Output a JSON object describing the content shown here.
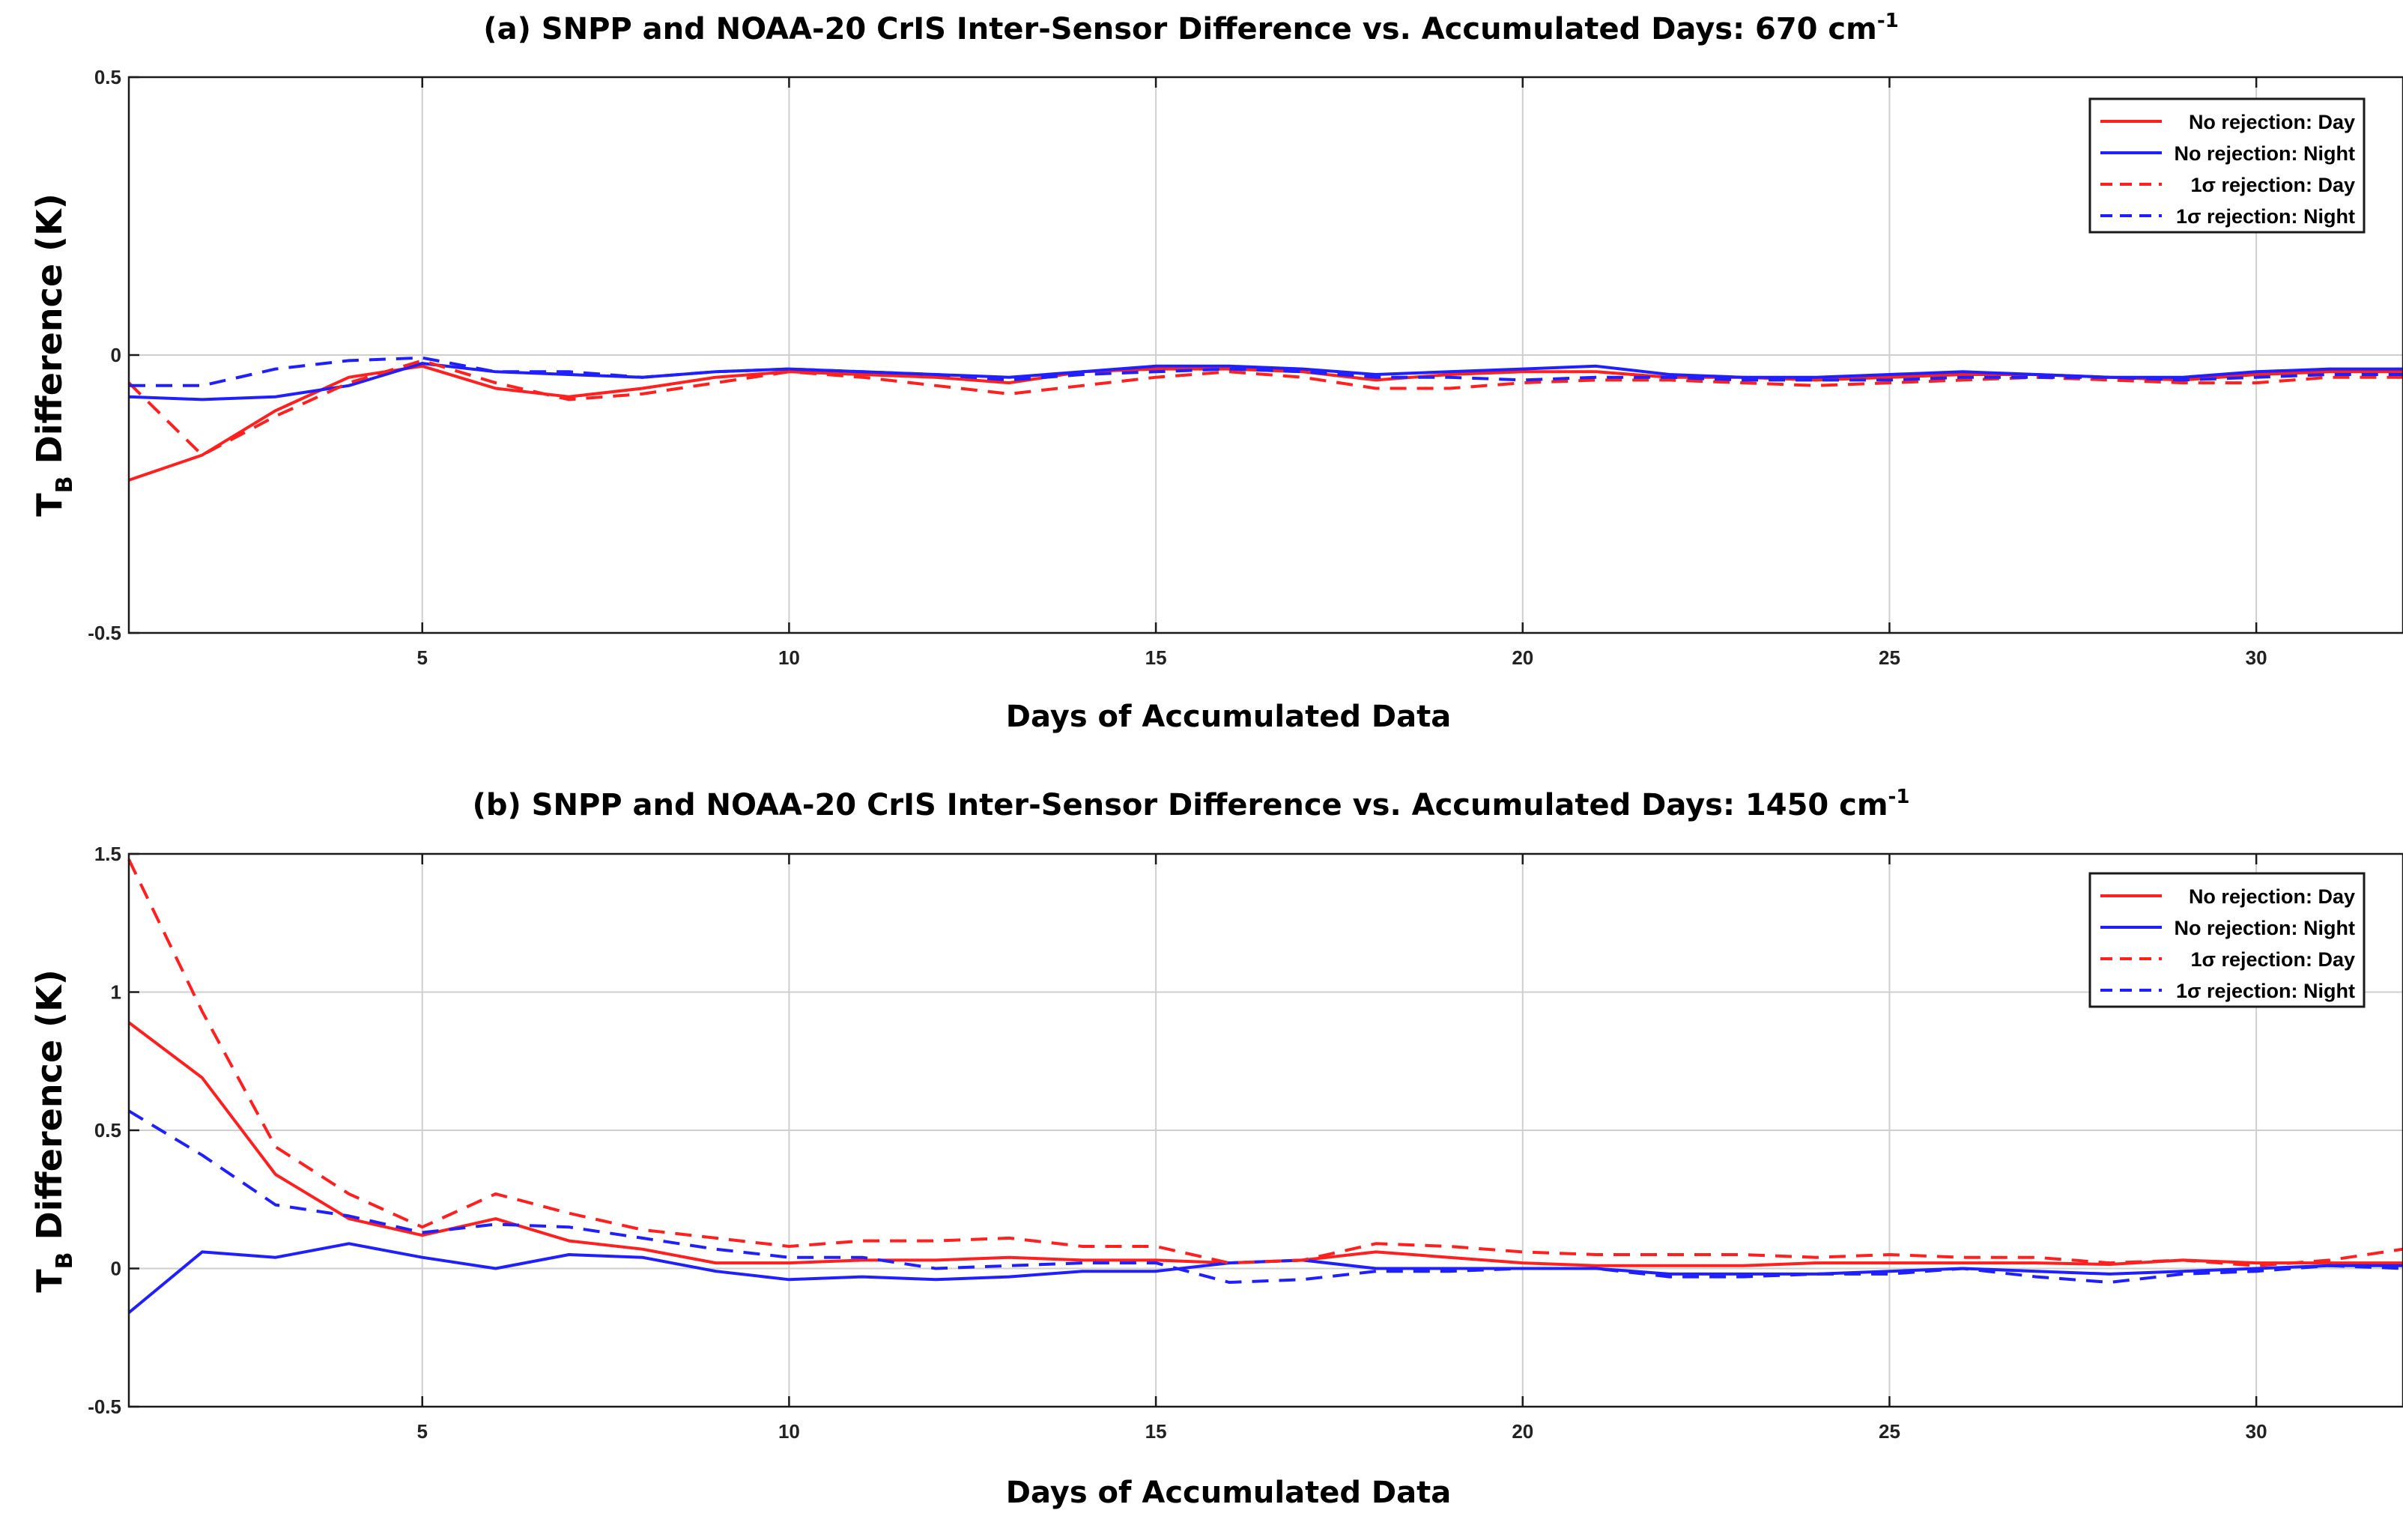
{
  "chart_data": [
    {
      "type": "line",
      "title": "(a) SNPP and NOAA-20 CrIS Inter-Sensor Difference vs. Accumulated Days: 670 cm",
      "title_sup": "-1",
      "xlabel": "Days of Accumulated Data",
      "ylabel_main": "T",
      "ylabel_sub": "B",
      "ylabel_rest": " Difference (K)",
      "xlim": [
        1,
        32
      ],
      "ylim": [
        -0.5,
        0.5
      ],
      "xticks": [
        5,
        10,
        15,
        20,
        25,
        30
      ],
      "xtick_labels": [
        "5",
        "10",
        "15",
        "20",
        "25",
        "30"
      ],
      "yticks": [
        -0.5,
        0,
        0.5
      ],
      "ytick_labels": [
        "-0.5",
        "0",
        "0.5"
      ],
      "grid": true,
      "legend_position": "top-right",
      "x": [
        1,
        2,
        3,
        4,
        5,
        6,
        7,
        8,
        9,
        10,
        11,
        12,
        13,
        14,
        15,
        16,
        17,
        18,
        19,
        20,
        21,
        22,
        23,
        24,
        25,
        26,
        27,
        28,
        29,
        30,
        31,
        32
      ],
      "series": [
        {
          "name": "No rejection: Day",
          "color": "#ff2020",
          "dash": "solid",
          "values": [
            -0.225,
            -0.18,
            -0.1,
            -0.04,
            -0.02,
            -0.06,
            -0.075,
            -0.06,
            -0.04,
            -0.03,
            -0.035,
            -0.04,
            -0.05,
            -0.03,
            -0.025,
            -0.025,
            -0.03,
            -0.045,
            -0.035,
            -0.03,
            -0.03,
            -0.04,
            -0.04,
            -0.045,
            -0.04,
            -0.035,
            -0.035,
            -0.04,
            -0.045,
            -0.035,
            -0.03,
            -0.03
          ]
        },
        {
          "name": "No rejection: Night",
          "color": "#2020ff",
          "dash": "solid",
          "values": [
            -0.075,
            -0.08,
            -0.075,
            -0.055,
            -0.015,
            -0.03,
            -0.035,
            -0.04,
            -0.03,
            -0.025,
            -0.03,
            -0.035,
            -0.04,
            -0.03,
            -0.02,
            -0.02,
            -0.025,
            -0.035,
            -0.03,
            -0.025,
            -0.02,
            -0.035,
            -0.04,
            -0.04,
            -0.035,
            -0.03,
            -0.035,
            -0.04,
            -0.04,
            -0.03,
            -0.025,
            -0.025
          ]
        },
        {
          "name": "1σ rejection: Day",
          "color": "#ff2020",
          "dash": "dashed",
          "values": [
            -0.05,
            -0.18,
            -0.11,
            -0.05,
            -0.01,
            -0.05,
            -0.08,
            -0.07,
            -0.05,
            -0.03,
            -0.04,
            -0.055,
            -0.07,
            -0.055,
            -0.04,
            -0.03,
            -0.04,
            -0.06,
            -0.06,
            -0.05,
            -0.045,
            -0.045,
            -0.05,
            -0.055,
            -0.05,
            -0.045,
            -0.04,
            -0.045,
            -0.05,
            -0.05,
            -0.04,
            -0.04
          ]
        },
        {
          "name": "1σ rejection: Night",
          "color": "#2020ff",
          "dash": "dashed",
          "values": [
            -0.055,
            -0.055,
            -0.025,
            -0.01,
            -0.005,
            -0.03,
            -0.03,
            -0.04,
            -0.03,
            -0.025,
            -0.03,
            -0.035,
            -0.045,
            -0.035,
            -0.03,
            -0.025,
            -0.03,
            -0.04,
            -0.04,
            -0.045,
            -0.04,
            -0.04,
            -0.045,
            -0.045,
            -0.045,
            -0.04,
            -0.04,
            -0.04,
            -0.045,
            -0.04,
            -0.035,
            -0.035
          ]
        }
      ]
    },
    {
      "type": "line",
      "title": "(b) SNPP and NOAA-20 CrIS Inter-Sensor Difference vs. Accumulated Days: 1450 cm",
      "title_sup": "-1",
      "xlabel": "Days of Accumulated Data",
      "ylabel_main": "T",
      "ylabel_sub": "B",
      "ylabel_rest": " Difference (K)",
      "xlim": [
        1,
        32
      ],
      "ylim": [
        -0.5,
        1.5
      ],
      "xticks": [
        5,
        10,
        15,
        20,
        25,
        30
      ],
      "xtick_labels": [
        "5",
        "10",
        "15",
        "20",
        "25",
        "30"
      ],
      "yticks": [
        -0.5,
        0,
        0.5,
        1,
        1.5
      ],
      "ytick_labels": [
        "-0.5",
        "0",
        "0.5",
        "1",
        "1.5"
      ],
      "grid": true,
      "legend_position": "top-right",
      "x": [
        1,
        2,
        3,
        4,
        5,
        6,
        7,
        8,
        9,
        10,
        11,
        12,
        13,
        14,
        15,
        16,
        17,
        18,
        19,
        20,
        21,
        22,
        23,
        24,
        25,
        26,
        27,
        28,
        29,
        30,
        31,
        32
      ],
      "series": [
        {
          "name": "No rejection: Day",
          "color": "#ff2020",
          "dash": "solid",
          "values": [
            0.89,
            0.69,
            0.34,
            0.18,
            0.12,
            0.18,
            0.1,
            0.07,
            0.02,
            0.02,
            0.03,
            0.03,
            0.04,
            0.03,
            0.03,
            0.02,
            0.03,
            0.06,
            0.04,
            0.02,
            0.01,
            0.01,
            0.01,
            0.02,
            0.02,
            0.02,
            0.02,
            0.015,
            0.03,
            0.02,
            0.02,
            0.02
          ]
        },
        {
          "name": "No rejection: Night",
          "color": "#2020ff",
          "dash": "solid",
          "values": [
            -0.16,
            0.06,
            0.04,
            0.09,
            0.04,
            0.0,
            0.05,
            0.04,
            -0.01,
            -0.04,
            -0.03,
            -0.04,
            -0.03,
            -0.01,
            -0.01,
            0.02,
            0.03,
            0.0,
            0.0,
            0.0,
            0.0,
            -0.02,
            -0.02,
            -0.02,
            -0.01,
            0.0,
            -0.01,
            -0.02,
            -0.01,
            0.0,
            0.01,
            0.01
          ]
        },
        {
          "name": "1σ rejection: Day",
          "color": "#ff2020",
          "dash": "dashed",
          "values": [
            1.48,
            0.93,
            0.44,
            0.27,
            0.15,
            0.27,
            0.2,
            0.14,
            0.11,
            0.08,
            0.1,
            0.1,
            0.11,
            0.08,
            0.08,
            0.02,
            0.03,
            0.09,
            0.08,
            0.06,
            0.05,
            0.05,
            0.05,
            0.04,
            0.05,
            0.04,
            0.04,
            0.02,
            0.03,
            0.01,
            0.03,
            0.07
          ]
        },
        {
          "name": "1σ rejection: Night",
          "color": "#2020ff",
          "dash": "dashed",
          "values": [
            0.57,
            0.41,
            0.23,
            0.19,
            0.13,
            0.16,
            0.15,
            0.11,
            0.07,
            0.04,
            0.04,
            0.0,
            0.01,
            0.02,
            0.02,
            -0.05,
            -0.04,
            -0.01,
            -0.01,
            0.0,
            0.0,
            -0.03,
            -0.03,
            -0.02,
            -0.02,
            0.0,
            -0.03,
            -0.05,
            -0.02,
            -0.01,
            0.01,
            0.0
          ]
        }
      ]
    }
  ]
}
